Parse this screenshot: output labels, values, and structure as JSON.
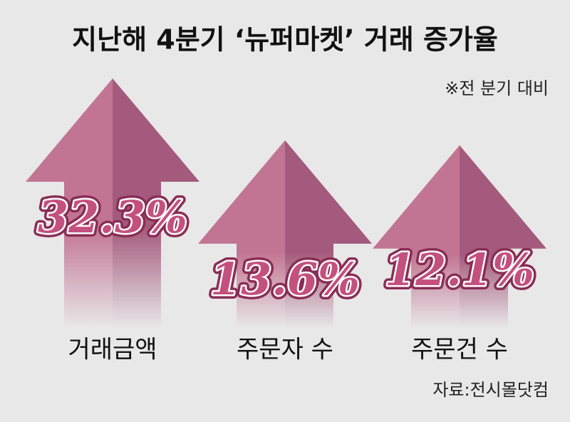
{
  "chart_data": {
    "type": "arrow",
    "title": "지난해 4분기 ‘뉴퍼마켓’ 거래 증가율",
    "subtitle": "※전 분기 대비",
    "source": "자료:전시몰닷컴",
    "categories": [
      "거래금액",
      "주문자 수",
      "주문건 수"
    ],
    "values": [
      32.3,
      13.6,
      12.1
    ],
    "value_labels": [
      "32.3%",
      "13.6%",
      "12.1%"
    ],
    "color": "#c27592"
  }
}
